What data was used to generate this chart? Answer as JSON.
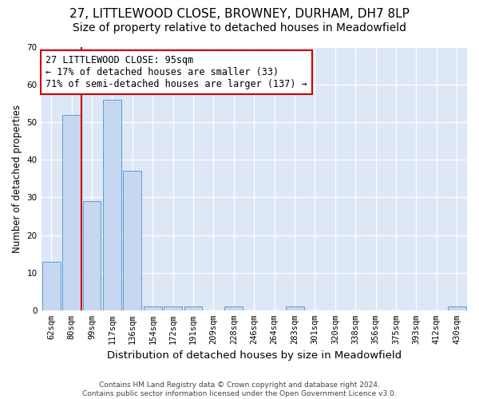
{
  "title_line1": "27, LITTLEWOOD CLOSE, BROWNEY, DURHAM, DH7 8LP",
  "title_line2": "Size of property relative to detached houses in Meadowfield",
  "xlabel": "Distribution of detached houses by size in Meadowfield",
  "ylabel": "Number of detached properties",
  "categories": [
    "62sqm",
    "80sqm",
    "99sqm",
    "117sqm",
    "136sqm",
    "154sqm",
    "172sqm",
    "191sqm",
    "209sqm",
    "228sqm",
    "246sqm",
    "264sqm",
    "283sqm",
    "301sqm",
    "320sqm",
    "338sqm",
    "356sqm",
    "375sqm",
    "393sqm",
    "412sqm",
    "430sqm"
  ],
  "values": [
    13,
    52,
    29,
    56,
    37,
    1,
    1,
    1,
    0,
    1,
    0,
    0,
    1,
    0,
    0,
    0,
    0,
    0,
    0,
    0,
    1
  ],
  "bar_color": "#c5d8f0",
  "bar_edge_color": "#5a9fd4",
  "vline_color": "#cc0000",
  "annotation_line1": "27 LITTLEWOOD CLOSE: 95sqm",
  "annotation_line2": "← 17% of detached houses are smaller (33)",
  "annotation_line3": "71% of semi-detached houses are larger (137) →",
  "annotation_box_color": "white",
  "annotation_box_edge_color": "#cc0000",
  "ylim": [
    0,
    70
  ],
  "yticks": [
    0,
    10,
    20,
    30,
    40,
    50,
    60,
    70
  ],
  "background_color": "#dde7f5",
  "footer_text": "Contains HM Land Registry data © Crown copyright and database right 2024.\nContains public sector information licensed under the Open Government Licence v3.0.",
  "title_fontsize": 11,
  "subtitle_fontsize": 10,
  "xlabel_fontsize": 9.5,
  "ylabel_fontsize": 8.5,
  "tick_fontsize": 7.5,
  "annotation_fontsize": 8.5
}
